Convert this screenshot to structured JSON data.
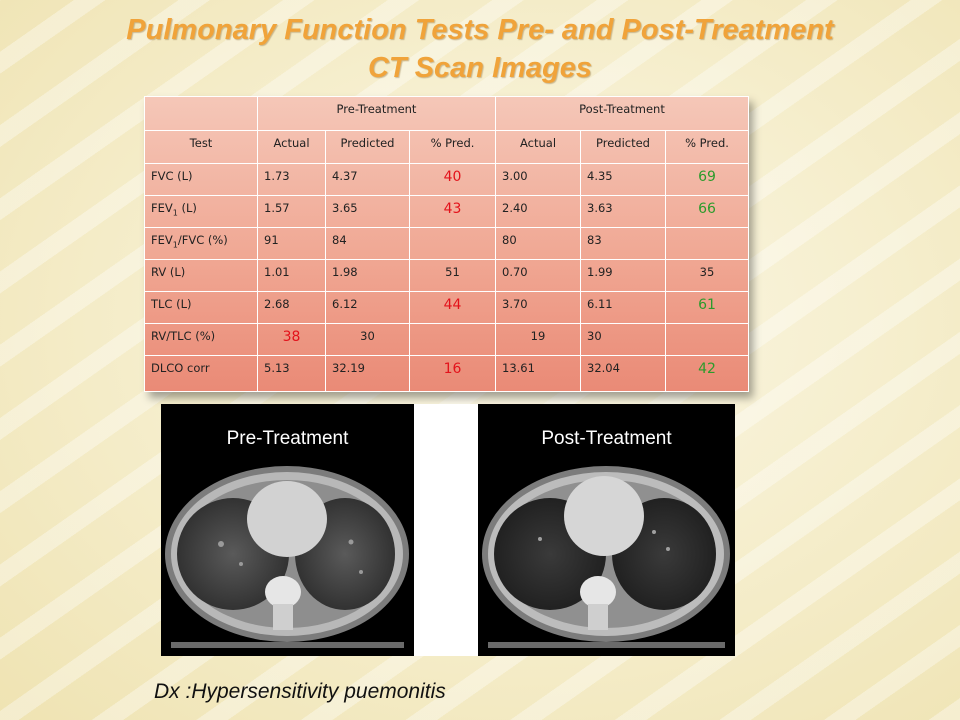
{
  "title_line1": "Pulmonary Function Tests Pre- and Post-Treatment",
  "title_line2": "CT Scan Images",
  "table": {
    "group_pre": "Pre-Treatment",
    "group_post": "Post-Treatment",
    "col_test": "Test",
    "col_actual": "Actual",
    "col_predicted": "Predicted",
    "col_pct": "% Pred.",
    "rows": [
      {
        "test": "FVC (L)",
        "pre_actual": "1.73",
        "pre_pred": "4.37",
        "pre_pct": "40",
        "post_actual": "3.00",
        "post_pred": "4.35",
        "post_pct": "69"
      },
      {
        "test_main": "FEV",
        "test_sub": "1",
        "test_tail": " (L)",
        "pre_actual": "1.57",
        "pre_pred": "3.65",
        "pre_pct": "43",
        "post_actual": "2.40",
        "post_pred": "3.63",
        "post_pct": "66"
      },
      {
        "test_main": "FEV",
        "test_sub": "1",
        "test_tail": "/FVC (%)",
        "pre_actual": "91",
        "pre_pred": "84",
        "pre_pct": "",
        "post_actual": "80",
        "post_pred": "83",
        "post_pct": ""
      },
      {
        "test": "RV (L)",
        "pre_actual": "1.01",
        "pre_pred": "1.98",
        "pre_pct": "51",
        "post_actual": "0.70",
        "post_pred": "1.99",
        "post_pct": "35"
      },
      {
        "test": "TLC (L)",
        "pre_actual": "2.68",
        "pre_pred": "6.12",
        "pre_pct": "44",
        "post_actual": "3.70",
        "post_pred": "6.11",
        "post_pct": "61"
      },
      {
        "test": "RV/TLC (%)",
        "pre_actual": "38",
        "pre_pred": "30",
        "pre_pct": "",
        "post_actual": "19",
        "post_pred": "30",
        "post_pct": ""
      },
      {
        "test": "DLCO corr",
        "pre_actual": "5.13",
        "pre_pred": "32.19",
        "pre_pct": "16",
        "post_actual": "13.61",
        "post_pred": "32.04",
        "post_pct": "42"
      }
    ]
  },
  "ct": {
    "pre_label": "Pre-Treatment",
    "post_label": "Post-Treatment"
  },
  "diagnosis": "Dx :Hypersensitivity puemonitis",
  "colors": {
    "title": "#f0a33a",
    "abnormal_value": "#e3121b",
    "improved_value": "#2c9b2c"
  }
}
